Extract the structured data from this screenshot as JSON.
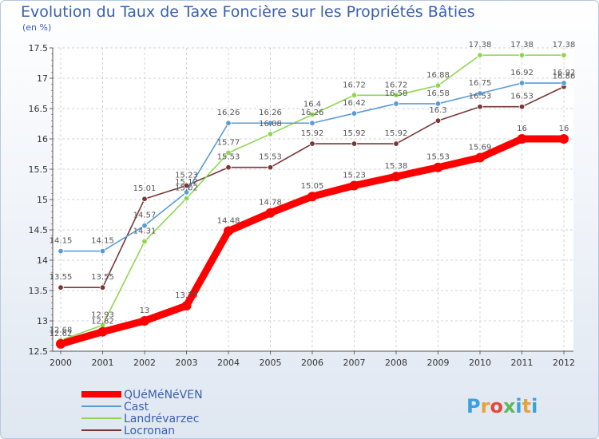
{
  "chart_data": {
    "type": "line",
    "title": "Evolution du Taux de Taxe Foncière sur les Propriétés Bâties",
    "subtitle": "(en %)",
    "xlabel": "",
    "ylabel": "",
    "ylim": [
      12.5,
      17.5
    ],
    "yticks": [
      "12.5",
      "13",
      "13.5",
      "14",
      "14.5",
      "15",
      "15.5",
      "16",
      "16.5",
      "17",
      "17.5"
    ],
    "categories": [
      "2000",
      "2001",
      "2002",
      "2003",
      "2004",
      "2005",
      "2006",
      "2007",
      "2008",
      "2009",
      "2010",
      "2011",
      "2012"
    ],
    "grid": true,
    "legend": "bottom-left",
    "series": [
      {
        "name": "QUéMéNéVEN",
        "color": "#ff0000",
        "values": [
          12.62,
          12.82,
          13,
          13.25,
          14.48,
          14.78,
          15.05,
          15.23,
          15.38,
          15.53,
          15.69,
          16,
          16
        ],
        "labels": [
          "12.62",
          "12.82",
          "13",
          "13.25",
          "14.48",
          "14.78",
          "15.05",
          "15.23",
          "15.38",
          "15.53",
          "15.69",
          "16",
          "16"
        ]
      },
      {
        "name": "Cast",
        "color": "#5b9bd5",
        "values": [
          14.15,
          14.15,
          14.57,
          15.12,
          16.26,
          16.26,
          16.26,
          16.42,
          16.58,
          16.58,
          16.75,
          16.92,
          16.92
        ],
        "labels": [
          "14.15",
          "14.15",
          "14.57",
          "15.12",
          "16.26",
          "16.26",
          "16.26",
          "16.42",
          "16.58",
          "16.58",
          "16.75",
          "16.92",
          "16.92"
        ]
      },
      {
        "name": "Landrévarzec",
        "color": "#8ed652",
        "values": [
          12.68,
          12.93,
          14.31,
          15.02,
          15.77,
          16.08,
          16.4,
          16.72,
          16.72,
          16.88,
          17.38,
          17.38,
          17.38
        ],
        "labels": [
          "12.68",
          "12.93",
          "14.31",
          "15.02",
          "15.77",
          "16.08",
          "16.4",
          "16.72",
          "16.72",
          "16.88",
          "17.38",
          "17.38",
          "17.38"
        ]
      },
      {
        "name": "Locronan",
        "color": "#7a3636",
        "values": [
          13.55,
          13.55,
          15.01,
          15.23,
          15.53,
          15.53,
          15.92,
          15.92,
          15.92,
          16.3,
          16.53,
          16.53,
          16.86
        ],
        "labels": [
          "13.55",
          "13.55",
          "15.01",
          "15.23",
          "15.53",
          "15.53",
          "15.92",
          "15.92",
          "15.92",
          "16.3",
          "16.53",
          "16.53",
          "16.86"
        ]
      }
    ]
  },
  "logo": {
    "text": "Proxiti"
  }
}
